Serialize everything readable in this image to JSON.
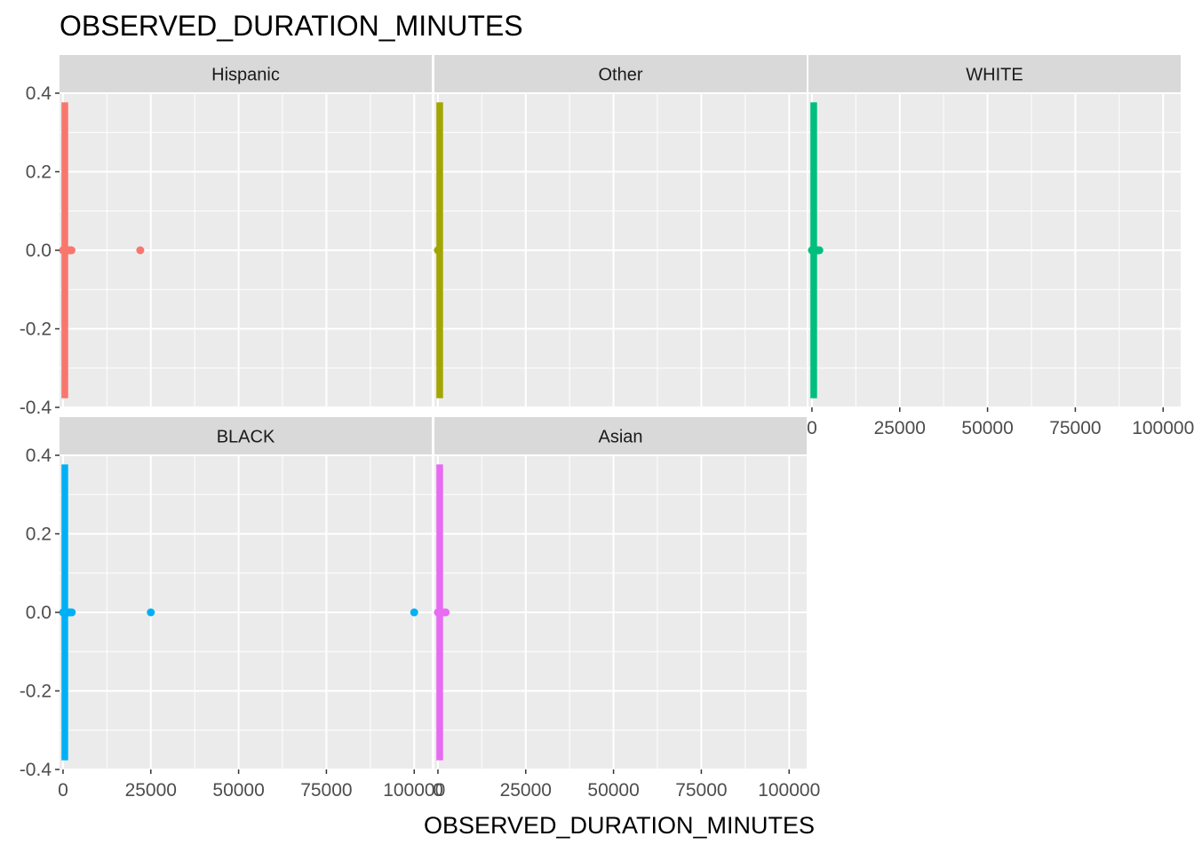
{
  "chart_data": {
    "type": "scatter",
    "title": "OBSERVED_DURATION_MINUTES",
    "xlabel": "OBSERVED_DURATION_MINUTES",
    "ylabel": "",
    "xlim": [
      -1000,
      105000
    ],
    "ylim": [
      -0.4,
      0.4
    ],
    "x_ticks": [
      0,
      25000,
      50000,
      75000,
      100000
    ],
    "x_tick_labels": [
      "0",
      "25000",
      "50000",
      "75000",
      "100000"
    ],
    "y_ticks": [
      -0.4,
      -0.2,
      0.0,
      0.2,
      0.4
    ],
    "y_tick_labels": [
      "-0.4",
      "-0.2",
      "0.0",
      "0.2",
      "0.4"
    ],
    "grid": true,
    "legend": "none",
    "facets": [
      {
        "name": "Hispanic",
        "color": "#F8766D",
        "box": {
          "q1": 0,
          "median": 60,
          "q3": 300
        },
        "points": [
          0,
          150,
          400,
          800,
          1200,
          1600,
          2000,
          2400,
          22000
        ]
      },
      {
        "name": "Other",
        "color": "#A3A500",
        "box": {
          "q1": 0,
          "median": 30,
          "q3": 120
        },
        "points": [
          0,
          100,
          300
        ]
      },
      {
        "name": "WHITE",
        "color": "#00BF7D",
        "box": {
          "q1": 0,
          "median": 60,
          "q3": 300
        },
        "points": [
          0,
          200,
          500,
          900,
          1300,
          1700,
          2100
        ]
      },
      {
        "name": "BLACK",
        "color": "#00B0F6",
        "box": {
          "q1": 0,
          "median": 60,
          "q3": 300
        },
        "points": [
          0,
          200,
          600,
          1000,
          1500,
          2000,
          2500,
          25000,
          100000
        ]
      },
      {
        "name": "Asian",
        "color": "#E76BF3",
        "box": {
          "q1": 0,
          "median": 60,
          "q3": 300
        },
        "points": [
          0,
          300,
          1000,
          1600,
          2200
        ]
      }
    ]
  }
}
